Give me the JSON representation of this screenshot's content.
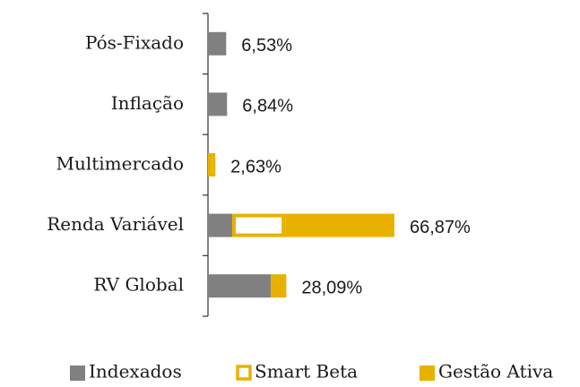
{
  "chart_data": {
    "type": "stacked-barh",
    "categories": [
      "Pós-Fixado",
      "Inflação",
      "Multimercado",
      "Renda Variável",
      "RV Global"
    ],
    "series": [
      {
        "name": "Indexados",
        "color": "#808080",
        "values": [
          6.53,
          6.84,
          0,
          8.7,
          22.5
        ]
      },
      {
        "name": "Smart Beta",
        "color": "#e8b100",
        "values": [
          0,
          0,
          2.63,
          19.0,
          0
        ]
      },
      {
        "name": "Gestão Ativa",
        "color": "#e8b100",
        "values": [
          0,
          0,
          0,
          39.17,
          5.59
        ]
      }
    ],
    "totals": [
      6.53,
      6.84,
      2.63,
      66.87,
      28.09
    ],
    "total_labels": [
      "6,53%",
      "6,84%",
      "2,63%",
      "66,87%",
      "28,09%"
    ],
    "legend": "bottom"
  }
}
